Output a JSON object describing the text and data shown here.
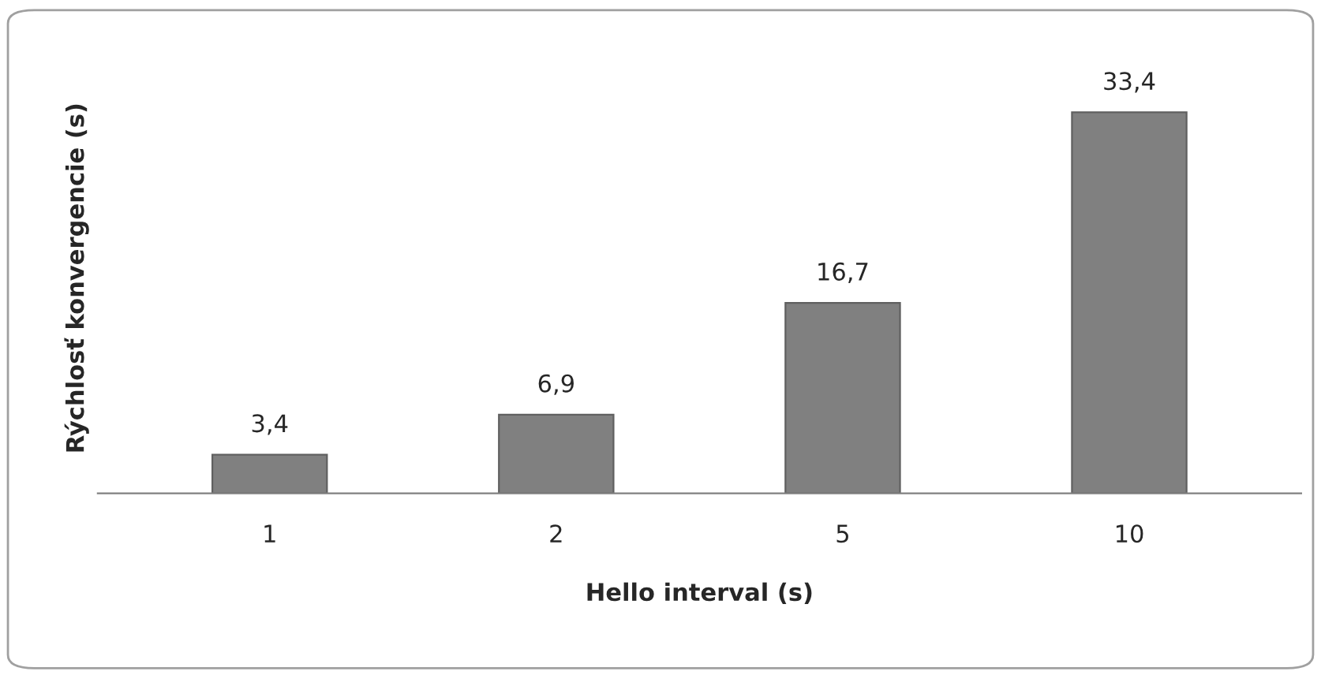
{
  "chart_data": {
    "type": "bar",
    "xlabel": "Hello interval (s)",
    "ylabel": "Rýchlosť konvergencie (s)",
    "categories": [
      "1",
      "2",
      "5",
      "10"
    ],
    "values": [
      3.4,
      6.9,
      16.7,
      33.4
    ],
    "value_labels": [
      "3,4",
      "6,9",
      "16,7",
      "33,4"
    ],
    "color": "#808080",
    "grid": false,
    "legend": false
  }
}
